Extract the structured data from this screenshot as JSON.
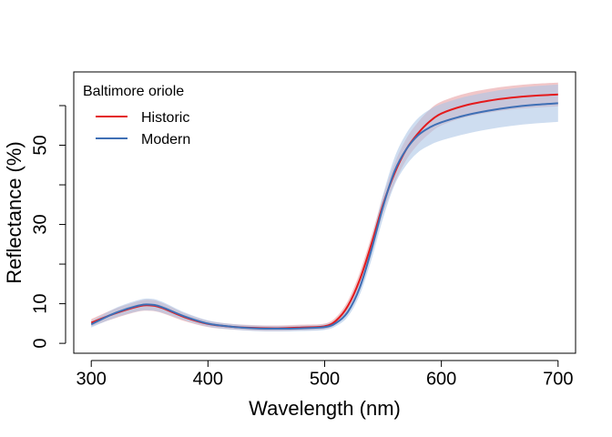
{
  "chart_data": {
    "type": "line",
    "title": "",
    "xlabel": "Wavelength (nm)",
    "ylabel": "Reflectance (%)",
    "xlim": [
      300,
      700
    ],
    "ylim": [
      0,
      60
    ],
    "x_ticks": [
      300,
      400,
      500,
      600,
      700
    ],
    "y_ticks_labeled": [
      0,
      10,
      30,
      50
    ],
    "y_ticks_minor": [
      20,
      40,
      60
    ],
    "grid": false,
    "legend": {
      "title": "Baltimore oriole",
      "position": "top-left",
      "entries": [
        "Historic",
        "Modern"
      ]
    },
    "x": [
      300,
      320,
      340,
      350,
      360,
      380,
      400,
      420,
      440,
      460,
      480,
      500,
      510,
      520,
      530,
      540,
      550,
      560,
      570,
      580,
      590,
      600,
      620,
      640,
      660,
      680,
      700
    ],
    "series": [
      {
        "name": "Historic",
        "color": "#e41a1c",
        "band_color": "#e7a0a4",
        "values": [
          5.2,
          7.5,
          9.3,
          9.6,
          9.0,
          6.6,
          4.9,
          4.2,
          3.9,
          3.8,
          4.0,
          4.3,
          5.8,
          9.5,
          16.0,
          25.0,
          35.0,
          43.0,
          49.0,
          53.0,
          56.0,
          58.0,
          60.0,
          61.2,
          62.0,
          62.5,
          62.8
        ],
        "lower": [
          4.3,
          6.3,
          8.0,
          8.2,
          7.7,
          5.6,
          4.1,
          3.5,
          3.2,
          3.1,
          3.3,
          3.6,
          4.9,
          8.2,
          14.2,
          23.0,
          32.8,
          40.5,
          46.3,
          50.2,
          53.0,
          55.0,
          57.0,
          58.2,
          59.0,
          59.5,
          59.8
        ],
        "upper": [
          6.1,
          8.7,
          10.6,
          11.0,
          10.3,
          7.6,
          5.7,
          4.9,
          4.6,
          4.5,
          4.7,
          5.0,
          6.7,
          10.8,
          17.8,
          27.0,
          37.2,
          45.5,
          51.7,
          55.8,
          59.0,
          61.0,
          63.0,
          64.2,
          65.0,
          65.5,
          65.8
        ]
      },
      {
        "name": "Modern",
        "color": "#3f6fb5",
        "band_color": "#aec6e6",
        "values": [
          4.8,
          7.6,
          9.5,
          9.8,
          9.2,
          6.8,
          5.0,
          4.2,
          3.8,
          3.7,
          3.8,
          4.1,
          5.2,
          8.0,
          14.0,
          23.5,
          34.5,
          43.5,
          49.0,
          52.5,
          54.5,
          55.8,
          57.5,
          58.7,
          59.6,
          60.2,
          60.6
        ],
        "lower": [
          4.0,
          6.4,
          8.1,
          8.3,
          7.8,
          5.8,
          4.2,
          3.5,
          3.1,
          3.0,
          3.1,
          3.4,
          4.4,
          6.8,
          12.2,
          21.0,
          31.5,
          40.0,
          45.0,
          48.2,
          50.0,
          51.2,
          52.8,
          54.0,
          54.9,
          55.5,
          55.9
        ],
        "upper": [
          5.6,
          8.8,
          10.9,
          11.3,
          10.6,
          7.8,
          5.8,
          4.9,
          4.5,
          4.4,
          4.5,
          4.8,
          6.0,
          9.2,
          15.8,
          26.0,
          37.5,
          47.0,
          53.0,
          56.8,
          59.0,
          60.4,
          62.2,
          63.4,
          64.3,
          64.9,
          65.3
        ]
      }
    ]
  }
}
